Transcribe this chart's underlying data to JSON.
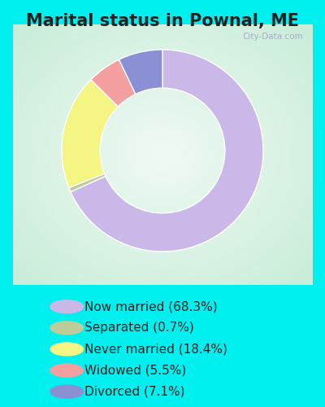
{
  "title": "Marital status in Pownal, ME",
  "slices": [
    68.3,
    0.7,
    18.4,
    5.5,
    7.1
  ],
  "labels": [
    "Now married (68.3%)",
    "Separated (0.7%)",
    "Never married (18.4%)",
    "Widowed (5.5%)",
    "Divorced (7.1%)"
  ],
  "colors": [
    "#C9B8E8",
    "#BCCC9A",
    "#F5F584",
    "#F4A0A0",
    "#8B8FD4"
  ],
  "background_cyan": "#00EFEF",
  "chart_bg_color": "#D8EED8",
  "title_fontsize": 15,
  "legend_fontsize": 11,
  "donut_width": 0.38,
  "start_angle": 90,
  "watermark": "City-Data.com",
  "watermark_color": "#aaaacc",
  "title_color": "#222222",
  "legend_text_color": "#222222"
}
